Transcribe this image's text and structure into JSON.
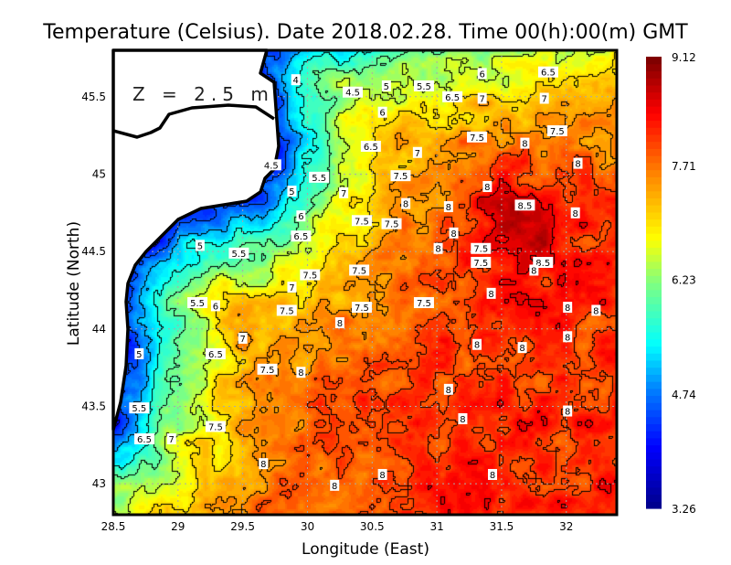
{
  "title": "Temperature (Celsius). Date 2018.02.28. Time 00(h):00(m)  GMT",
  "depth_label": "Z = 2.5 m",
  "chart_data": {
    "type": "heatmap",
    "xlabel": "Longitude (East)",
    "ylabel": "Latitude (North)",
    "xlim": [
      28.5,
      32.39
    ],
    "ylim": [
      42.8,
      45.8
    ],
    "x_ticks": [
      "28.5",
      "29",
      "29.5",
      "30",
      "30.5",
      "31",
      "31.5",
      "32"
    ],
    "y_ticks": [
      "43",
      "43.5",
      "44",
      "44.5",
      "45",
      "45.5"
    ],
    "grid": true,
    "colorbar": {
      "min": 3.26,
      "max": 9.12,
      "tick_labels": [
        "9.12",
        "7.71",
        "6.23",
        "4.74",
        "3.26"
      ],
      "colormap": "jet",
      "colors": [
        "#00008f",
        "#0000ff",
        "#0080ff",
        "#00ffff",
        "#80ff80",
        "#ffff00",
        "#ff8000",
        "#ff0000",
        "#800000"
      ]
    },
    "contour_interval": 0.5,
    "contour_labels": [
      {
        "v": "4",
        "lon": 29.91,
        "lat": 45.61
      },
      {
        "v": "4.5",
        "lon": 30.35,
        "lat": 45.53
      },
      {
        "v": "5",
        "lon": 30.61,
        "lat": 45.57
      },
      {
        "v": "5.5",
        "lon": 30.9,
        "lat": 45.57
      },
      {
        "v": "6",
        "lon": 31.35,
        "lat": 45.65
      },
      {
        "v": "6.5",
        "lon": 31.86,
        "lat": 45.66
      },
      {
        "v": "6.5",
        "lon": 31.12,
        "lat": 45.5
      },
      {
        "v": "7",
        "lon": 31.35,
        "lat": 45.49
      },
      {
        "v": "7",
        "lon": 31.83,
        "lat": 45.49
      },
      {
        "v": "6",
        "lon": 30.58,
        "lat": 45.4
      },
      {
        "v": "7.5",
        "lon": 31.31,
        "lat": 45.24
      },
      {
        "v": "7.5",
        "lon": 31.93,
        "lat": 45.28
      },
      {
        "v": "6.5",
        "lon": 30.49,
        "lat": 45.18
      },
      {
        "v": "7",
        "lon": 30.85,
        "lat": 45.14
      },
      {
        "v": "8",
        "lon": 31.68,
        "lat": 45.2
      },
      {
        "v": "4.5",
        "lon": 29.72,
        "lat": 45.06
      },
      {
        "v": "5.5",
        "lon": 30.09,
        "lat": 44.98
      },
      {
        "v": "7.5",
        "lon": 30.72,
        "lat": 44.99
      },
      {
        "v": "8",
        "lon": 32.09,
        "lat": 45.07
      },
      {
        "v": "5",
        "lon": 29.88,
        "lat": 44.89
      },
      {
        "v": "7",
        "lon": 30.28,
        "lat": 44.88
      },
      {
        "v": "8",
        "lon": 31.39,
        "lat": 44.92
      },
      {
        "v": "8",
        "lon": 30.76,
        "lat": 44.81
      },
      {
        "v": "8",
        "lon": 31.09,
        "lat": 44.79
      },
      {
        "v": "8.5",
        "lon": 31.68,
        "lat": 44.8
      },
      {
        "v": "8",
        "lon": 32.07,
        "lat": 44.75
      },
      {
        "v": "6",
        "lon": 29.95,
        "lat": 44.73
      },
      {
        "v": "7.5",
        "lon": 30.42,
        "lat": 44.7
      },
      {
        "v": "7.5",
        "lon": 30.65,
        "lat": 44.68
      },
      {
        "v": "8",
        "lon": 31.13,
        "lat": 44.62
      },
      {
        "v": "6.5",
        "lon": 29.95,
        "lat": 44.6
      },
      {
        "v": "5",
        "lon": 29.17,
        "lat": 44.54
      },
      {
        "v": "5.5",
        "lon": 29.47,
        "lat": 44.49
      },
      {
        "v": "8",
        "lon": 31.01,
        "lat": 44.52
      },
      {
        "v": "7.5",
        "lon": 31.34,
        "lat": 44.52
      },
      {
        "v": "7.5",
        "lon": 31.34,
        "lat": 44.43
      },
      {
        "v": "8.5",
        "lon": 31.82,
        "lat": 44.43
      },
      {
        "v": "8",
        "lon": 31.75,
        "lat": 44.38
      },
      {
        "v": "7.5",
        "lon": 30.4,
        "lat": 44.38
      },
      {
        "v": "7.5",
        "lon": 30.02,
        "lat": 44.35
      },
      {
        "v": "7",
        "lon": 29.88,
        "lat": 44.27
      },
      {
        "v": "5.5",
        "lon": 29.15,
        "lat": 44.17
      },
      {
        "v": "6",
        "lon": 29.29,
        "lat": 44.15
      },
      {
        "v": "7.5",
        "lon": 30.42,
        "lat": 44.14
      },
      {
        "v": "7.5",
        "lon": 30.9,
        "lat": 44.17
      },
      {
        "v": "8",
        "lon": 31.42,
        "lat": 44.23
      },
      {
        "v": "8",
        "lon": 32.01,
        "lat": 44.14
      },
      {
        "v": "8",
        "lon": 32.23,
        "lat": 44.12
      },
      {
        "v": "7.5",
        "lon": 29.84,
        "lat": 44.12
      },
      {
        "v": "8",
        "lon": 30.25,
        "lat": 44.04
      },
      {
        "v": "7",
        "lon": 29.5,
        "lat": 43.94
      },
      {
        "v": "8",
        "lon": 32.01,
        "lat": 43.95
      },
      {
        "v": "5",
        "lon": 28.7,
        "lat": 43.84
      },
      {
        "v": "6.5",
        "lon": 29.29,
        "lat": 43.84
      },
      {
        "v": "8",
        "lon": 31.31,
        "lat": 43.9
      },
      {
        "v": "8",
        "lon": 31.66,
        "lat": 43.88
      },
      {
        "v": "7.5",
        "lon": 29.69,
        "lat": 43.74
      },
      {
        "v": "8",
        "lon": 29.95,
        "lat": 43.72
      },
      {
        "v": "8",
        "lon": 31.09,
        "lat": 43.61
      },
      {
        "v": "5.5",
        "lon": 28.7,
        "lat": 43.49
      },
      {
        "v": "8",
        "lon": 32.01,
        "lat": 43.47
      },
      {
        "v": "8",
        "lon": 31.2,
        "lat": 43.42
      },
      {
        "v": "7.5",
        "lon": 29.29,
        "lat": 43.37
      },
      {
        "v": "6.5",
        "lon": 28.74,
        "lat": 43.29
      },
      {
        "v": "7",
        "lon": 28.95,
        "lat": 43.29
      },
      {
        "v": "8",
        "lon": 29.66,
        "lat": 43.13
      },
      {
        "v": "8",
        "lon": 30.58,
        "lat": 43.06
      },
      {
        "v": "8",
        "lon": 31.43,
        "lat": 43.06
      },
      {
        "v": "8",
        "lon": 30.21,
        "lat": 42.99
      }
    ]
  }
}
